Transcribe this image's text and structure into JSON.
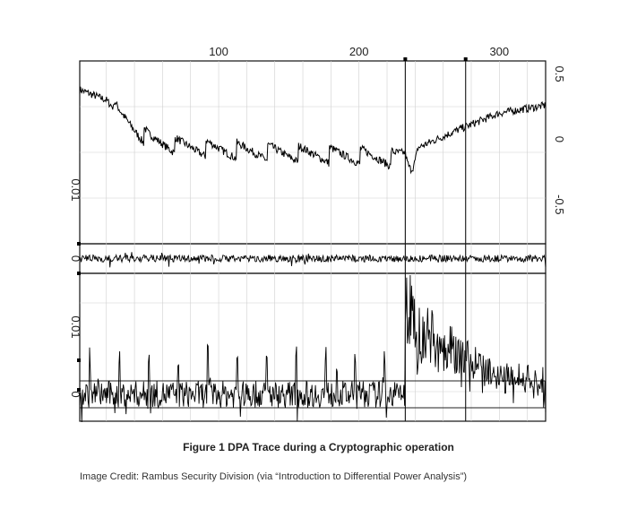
{
  "chart_data": {
    "type": "line",
    "grid": true,
    "x_ticks": [
      100,
      200,
      300
    ],
    "x_range": [
      1,
      333
    ],
    "markers": [
      233,
      276
    ],
    "panels": [
      {
        "name": "power-trace",
        "right_ticks": [
          "0.5",
          "0",
          "-0.5"
        ],
        "left_ticks": [
          "0.01"
        ],
        "y_range": [
          -0.8,
          0.6
        ],
        "trend": [
          [
            1,
            0.38
          ],
          [
            20,
            0.3
          ],
          [
            30,
            0.18
          ],
          [
            50,
            0.0
          ],
          [
            70,
            -0.05
          ],
          [
            100,
            -0.08
          ],
          [
            150,
            -0.11
          ],
          [
            200,
            -0.13
          ],
          [
            225,
            -0.15
          ],
          [
            245,
            -0.05
          ],
          [
            270,
            0.07
          ],
          [
            300,
            0.2
          ],
          [
            333,
            0.26
          ]
        ],
        "sawtooth_period": 22,
        "sawtooth_amplitude": 0.14
      },
      {
        "name": "dpa-difference-small",
        "left_ticks": [
          "0"
        ],
        "y_range": [
          -0.01,
          0.01
        ]
      },
      {
        "name": "dpa-difference-large",
        "left_ticks": [
          "0.01",
          "0"
        ],
        "y_range": [
          -0.004,
          0.018
        ],
        "baseline": 0.0,
        "band": [
          -0.002,
          0.002
        ],
        "spike_period": 21,
        "peak_region": [
          233,
          276
        ],
        "peak_value": 0.016
      }
    ]
  },
  "caption": "Figure 1 DPA Trace during a Cryptographic operation",
  "credit": "Image Credit: Rambus Security Division (via “Introduction to Differential Power Analysis”)"
}
